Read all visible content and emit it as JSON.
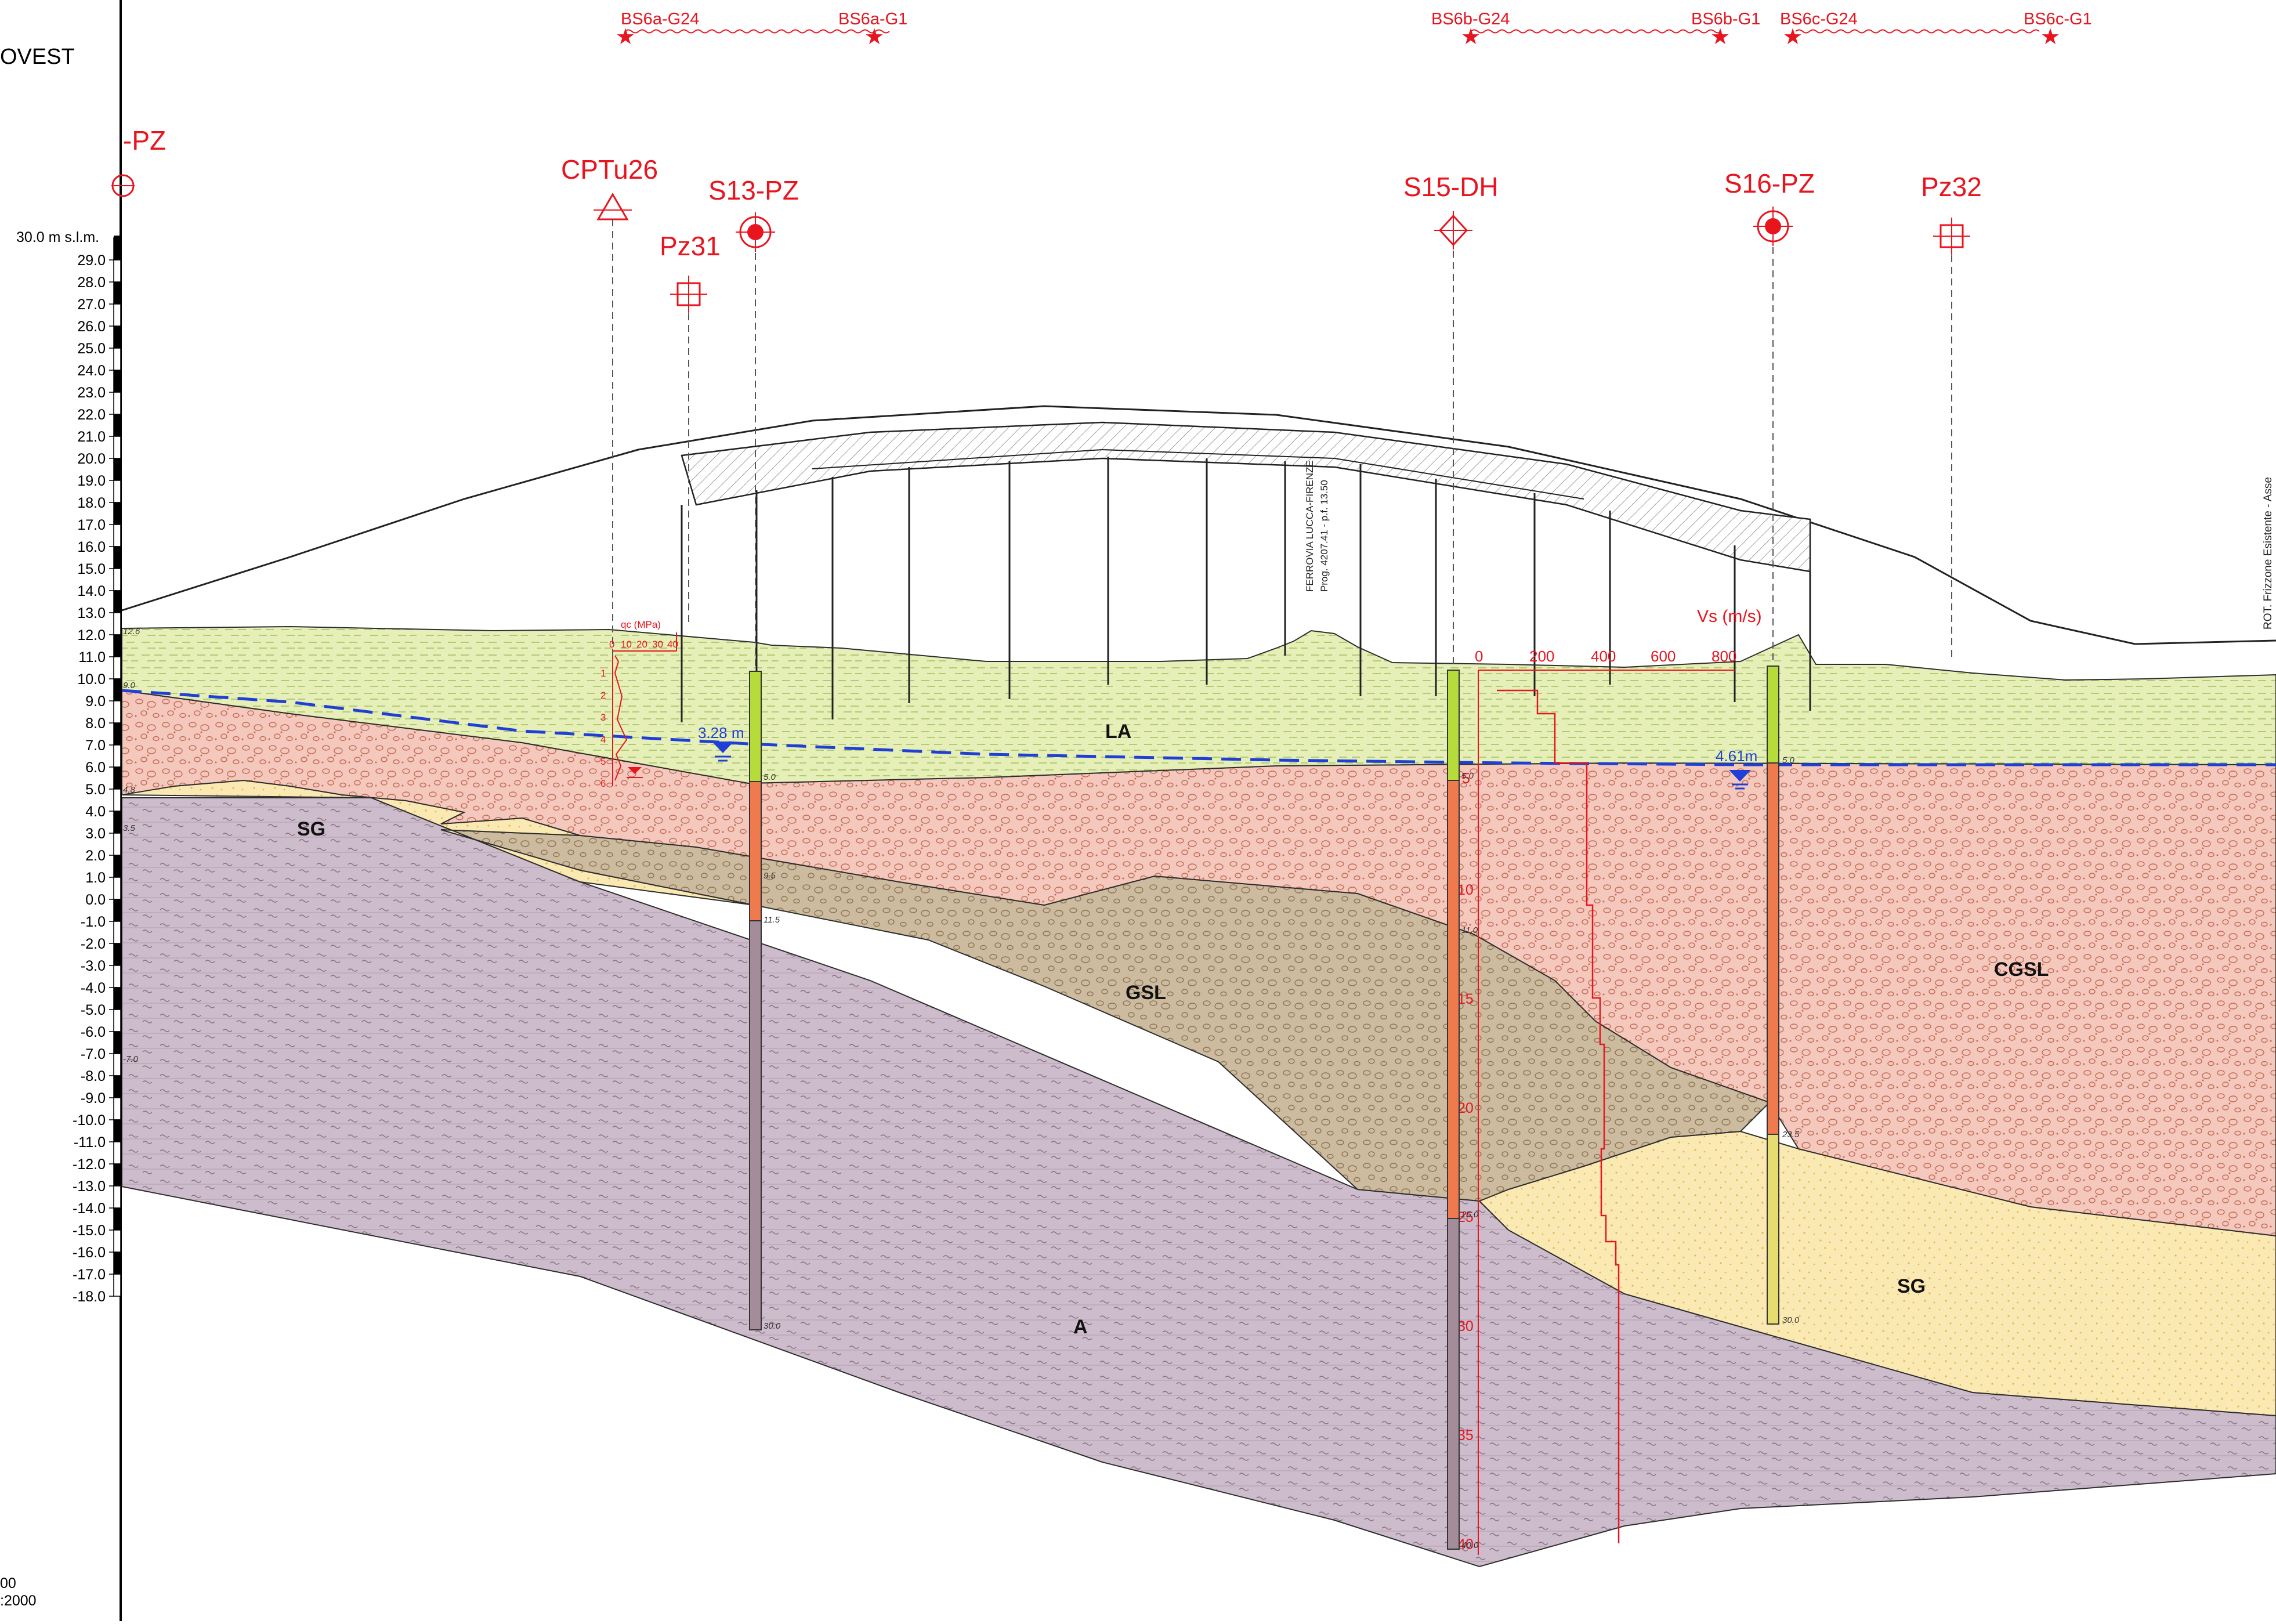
{
  "header": {
    "direction_label": "OVEST",
    "scale_line_1": "00",
    "scale_line_2": ":2000",
    "datum_label": "30.0 m s.l.m."
  },
  "elevation_scale": {
    "ticks": [
      "29.0",
      "28.0",
      "27.0",
      "26.0",
      "25.0",
      "24.0",
      "23.0",
      "22.0",
      "21.0",
      "20.0",
      "19.0",
      "18.0",
      "17.0",
      "16.0",
      "15.0",
      "14.0",
      "13.0",
      "12.0",
      "11.0",
      "10.0",
      "9.0",
      "8.0",
      "7.0",
      "6.0",
      "5.0",
      "4.0",
      "3.0",
      "2.0",
      "1.0",
      "0.0",
      "-1.0",
      "-2.0",
      "-3.0",
      "-4.0",
      "-5.0",
      "-6.0",
      "-7.0",
      "-8.0",
      "-9.0",
      "-10.0",
      "-11.0",
      "-12.0",
      "-13.0",
      "-14.0",
      "-15.0",
      "-16.0",
      "-17.0",
      "-18.0"
    ]
  },
  "survey_lines": [
    {
      "start_label": "BS6a-G24",
      "end_label": "BS6a-G1"
    },
    {
      "start_label": "BS6b-G24",
      "end_label": "BS6b-G1"
    },
    {
      "start_label": "BS6c-G24",
      "end_label": "BS6c-G1"
    }
  ],
  "investigations": [
    {
      "label": "-PZ",
      "symbol": "piezometer-crosshair"
    },
    {
      "label": "CPTu26",
      "symbol": "triangle"
    },
    {
      "label": "Pz31",
      "symbol": "square"
    },
    {
      "label": "S13-PZ",
      "symbol": "piezometer-filled"
    },
    {
      "label": "S15-DH",
      "symbol": "diamond"
    },
    {
      "label": "S16-PZ",
      "symbol": "piezometer-filled"
    },
    {
      "label": "Pz32",
      "symbol": "square"
    }
  ],
  "layers": {
    "la": "LA",
    "sg_left": "SG",
    "gsl": "GSL",
    "cgsl": "CGSL",
    "sg_right": "SG",
    "a": "A"
  },
  "water_table": {
    "left_depth": "3.28 m",
    "right_depth": "4.61m"
  },
  "railway": {
    "line1": "FERROVIA LUCCA-FIRENZE",
    "line2": "Prog. 4207.41 - p.f. 13.50"
  },
  "right_edge_label": "ROT. Frizzone Esistente - Asse",
  "cptu_chart": {
    "title": "qc (MPa)",
    "ticks": [
      "0",
      "10",
      "20",
      "30",
      "40"
    ],
    "depths": [
      "1",
      "2",
      "3",
      "4",
      "5",
      "6"
    ]
  },
  "vs_chart": {
    "title": "Vs (m/s)",
    "ticks": [
      "0",
      "200",
      "400",
      "600",
      "800"
    ],
    "depths": [
      "5",
      "10",
      "15",
      "20",
      "25",
      "30",
      "35",
      "40"
    ]
  },
  "boreholes": {
    "s13": {
      "marks": [
        "5.0",
        "9.5",
        "11.5",
        "30.0"
      ]
    },
    "s15": {
      "marks": [
        "5.0",
        "11.0",
        "25.0",
        "40.0"
      ]
    },
    "s16": {
      "marks": [
        "5.0",
        "23.5",
        "30.0"
      ]
    }
  },
  "left_boundary_marks": [
    "12.6",
    "9.0",
    "4.8",
    "3.5",
    "-7.0"
  ],
  "colors": {
    "la_fill": "#e6efb8",
    "cgsl_fill": "#f4c8bc",
    "sg_fill": "#fbe9b4",
    "gsl_fill": "#cdbb9f",
    "a_fill": "#cdbccc",
    "red": "#e8141e",
    "water": "#1f3fd6",
    "borehole_green": "#b6dc3c",
    "borehole_orange": "#ef7a4e",
    "borehole_mauve": "#a48c9a",
    "borehole_yellow": "#e6dc70"
  }
}
